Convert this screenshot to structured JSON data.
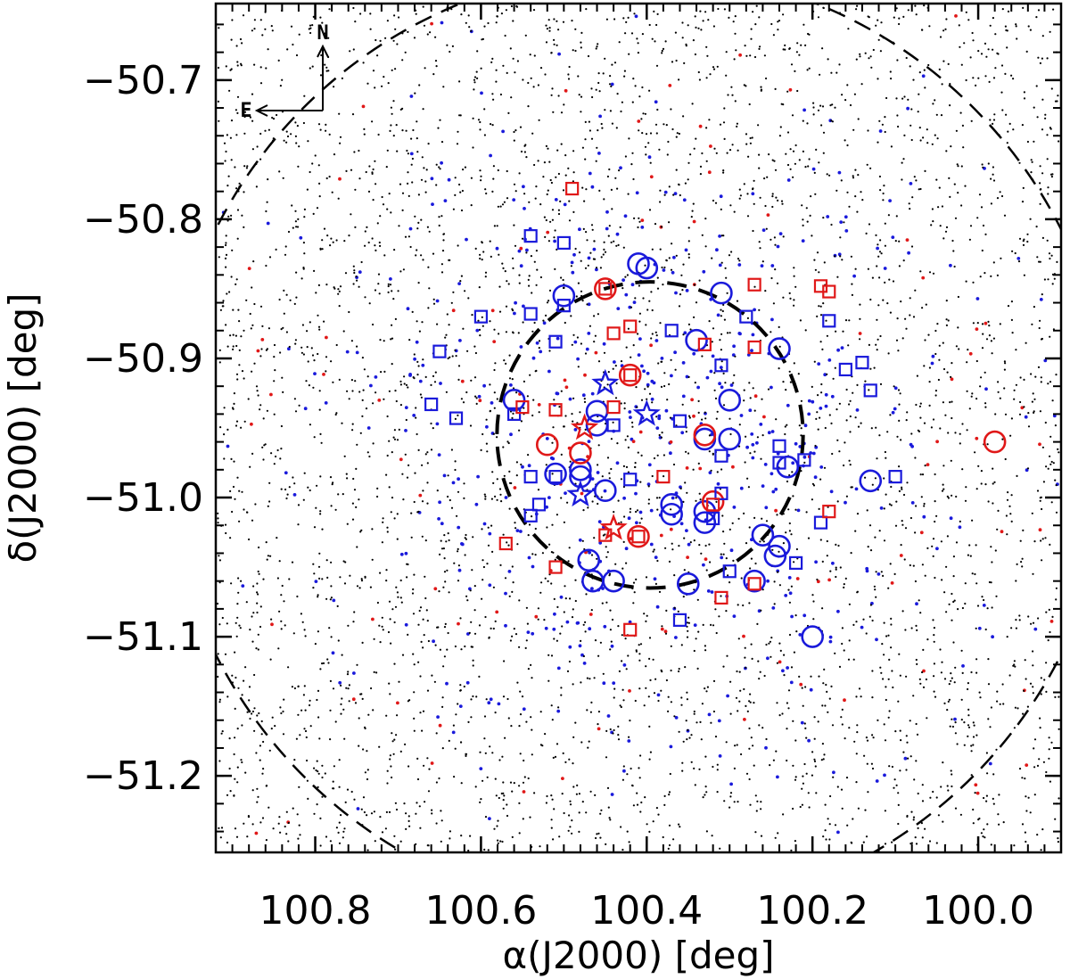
{
  "chart_data": {
    "type": "scatter",
    "title": "",
    "xlabel": "α(J2000) [deg]",
    "ylabel": "δ(J2000) [deg]",
    "xlim": [
      100.92,
      99.9
    ],
    "ylim": [
      -51.255,
      -50.645
    ],
    "x_reversed": true,
    "xticks": [
      100.8,
      100.6,
      100.4,
      100.2,
      100.0
    ],
    "xtick_labels": [
      "100.8",
      "100.6",
      "100.4",
      "100.2",
      "100.0"
    ],
    "yticks": [
      -50.7,
      -50.8,
      -50.9,
      -51.0,
      -51.1,
      -51.2
    ],
    "ytick_labels": [
      "−50.7",
      "−50.8",
      "−50.9",
      "−51.0",
      "−51.1",
      "−51.2"
    ],
    "compass": {
      "north": "N",
      "east": "E"
    },
    "colors": {
      "blue": "#1a1adb",
      "red": "#e01818",
      "black": "#000000"
    },
    "series": [
      {
        "marker": "circle",
        "color": "blue",
        "points": [
          [
            100.41,
            -50.832
          ],
          [
            100.4,
            -50.835
          ],
          [
            100.5,
            -50.855
          ],
          [
            100.31,
            -50.853
          ],
          [
            100.34,
            -50.887
          ],
          [
            100.24,
            -50.893
          ],
          [
            100.56,
            -50.93
          ],
          [
            100.46,
            -50.938
          ],
          [
            100.3,
            -50.93
          ],
          [
            100.46,
            -50.948
          ],
          [
            100.33,
            -50.958
          ],
          [
            100.3,
            -50.958
          ],
          [
            100.51,
            -50.983
          ],
          [
            100.48,
            -50.98
          ],
          [
            100.48,
            -50.985
          ],
          [
            100.45,
            -50.995
          ],
          [
            100.23,
            -50.978
          ],
          [
            100.13,
            -50.988
          ],
          [
            100.47,
            -51.045
          ],
          [
            100.465,
            -51.06
          ],
          [
            100.44,
            -51.06
          ],
          [
            100.37,
            -51.005
          ],
          [
            100.37,
            -51.012
          ],
          [
            100.33,
            -51.01
          ],
          [
            100.33,
            -51.018
          ],
          [
            100.26,
            -51.027
          ],
          [
            100.24,
            -51.035
          ],
          [
            100.245,
            -51.042
          ],
          [
            100.27,
            -51.06
          ],
          [
            100.35,
            -51.062
          ],
          [
            100.2,
            -51.1
          ]
        ]
      },
      {
        "marker": "circle",
        "color": "red",
        "points": [
          [
            100.45,
            -50.85
          ],
          [
            100.42,
            -50.912
          ],
          [
            100.33,
            -50.955
          ],
          [
            100.52,
            -50.962
          ],
          [
            100.48,
            -50.968
          ],
          [
            100.32,
            -51.003
          ],
          [
            100.41,
            -51.028
          ],
          [
            99.98,
            -50.96
          ]
        ]
      },
      {
        "marker": "square",
        "color": "blue",
        "points": [
          [
            100.54,
            -50.812
          ],
          [
            100.5,
            -50.817
          ],
          [
            100.6,
            -50.87
          ],
          [
            100.54,
            -50.868
          ],
          [
            100.5,
            -50.862
          ],
          [
            100.51,
            -50.888
          ],
          [
            100.65,
            -50.895
          ],
          [
            100.66,
            -50.933
          ],
          [
            100.56,
            -50.94
          ],
          [
            100.63,
            -50.943
          ],
          [
            100.37,
            -50.88
          ],
          [
            100.31,
            -50.905
          ],
          [
            100.28,
            -50.87
          ],
          [
            100.18,
            -50.873
          ],
          [
            100.16,
            -50.908
          ],
          [
            100.14,
            -50.903
          ],
          [
            100.13,
            -50.923
          ],
          [
            100.44,
            -50.948
          ],
          [
            100.36,
            -50.945
          ],
          [
            100.31,
            -50.97
          ],
          [
            100.24,
            -50.963
          ],
          [
            100.24,
            -50.975
          ],
          [
            100.21,
            -50.973
          ],
          [
            100.1,
            -50.985
          ],
          [
            100.54,
            -50.985
          ],
          [
            100.51,
            -50.985
          ],
          [
            100.53,
            -51.005
          ],
          [
            100.54,
            -51.013
          ],
          [
            100.42,
            -50.987
          ],
          [
            100.31,
            -50.997
          ],
          [
            100.32,
            -51.015
          ],
          [
            100.22,
            -51.047
          ],
          [
            100.19,
            -51.018
          ],
          [
            100.3,
            -51.053
          ],
          [
            100.36,
            -51.088
          ]
        ]
      },
      {
        "marker": "square",
        "color": "red",
        "points": [
          [
            100.49,
            -50.778
          ],
          [
            100.45,
            -50.85
          ],
          [
            100.27,
            -50.847
          ],
          [
            100.19,
            -50.848
          ],
          [
            100.18,
            -50.852
          ],
          [
            100.44,
            -50.882
          ],
          [
            100.42,
            -50.877
          ],
          [
            100.33,
            -50.89
          ],
          [
            100.27,
            -50.892
          ],
          [
            100.42,
            -50.912
          ],
          [
            100.55,
            -50.935
          ],
          [
            100.51,
            -50.937
          ],
          [
            100.44,
            -50.935
          ],
          [
            100.38,
            -50.985
          ],
          [
            100.32,
            -51.005
          ],
          [
            100.18,
            -51.01
          ],
          [
            100.57,
            -51.033
          ],
          [
            100.51,
            -51.05
          ],
          [
            100.45,
            -51.027
          ],
          [
            100.41,
            -51.028
          ],
          [
            100.27,
            -51.062
          ],
          [
            100.31,
            -51.072
          ],
          [
            100.42,
            -51.095
          ]
        ]
      },
      {
        "marker": "star",
        "color": "blue",
        "points": [
          [
            100.45,
            -50.918
          ],
          [
            100.4,
            -50.94
          ],
          [
            100.48,
            -50.998
          ]
        ]
      },
      {
        "marker": "star",
        "color": "red",
        "points": [
          [
            100.475,
            -50.95
          ],
          [
            100.44,
            -51.022
          ]
        ]
      },
      {
        "marker": "dot",
        "color": "blue",
        "description_count": 520
      },
      {
        "marker": "dot",
        "color": "red",
        "description_count": 150
      },
      {
        "marker": "dot",
        "color": "black",
        "description_count": 4200
      }
    ],
    "inner_ring": {
      "center": [
        100.396,
        -50.955
      ],
      "radius_deg": 0.11
    },
    "outer_ring": {
      "center": [
        100.41,
        -50.96
      ],
      "radius_deg": 0.34
    }
  }
}
